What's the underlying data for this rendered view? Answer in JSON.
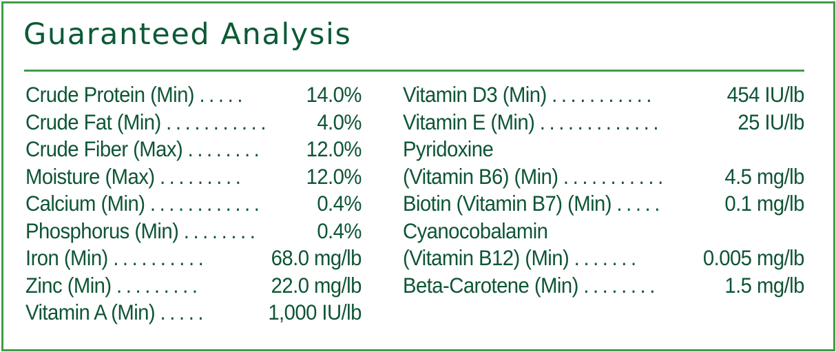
{
  "title": "Guaranteed Analysis",
  "colors": {
    "border": "#3f9c48",
    "text": "#0e5535",
    "title": "#0c5a36",
    "background": "#ffffff"
  },
  "left_column": [
    {
      "label": "Crude Protein (Min)",
      "dots": ".....",
      "value": "14.0%"
    },
    {
      "label": "Crude Fat (Min)",
      "dots": "...........",
      "value": "4.0%"
    },
    {
      "label": "Crude Fiber (Max)",
      "dots": "........",
      "value": "12.0%"
    },
    {
      "label": "Moisture (Max)",
      "dots": ".........",
      "value": "12.0%"
    },
    {
      "label": "Calcium (Min)",
      "dots": "............",
      "value": "0.4%"
    },
    {
      "label": "Phosphorus (Min)",
      "dots": "........",
      "value": "0.4%"
    },
    {
      "label": "Iron (Min)",
      "dots": "..........",
      "value": "68.0 mg/lb"
    },
    {
      "label": "Zinc (Min)",
      "dots": ".........",
      "value": "22.0 mg/lb"
    },
    {
      "label": "Vitamin A (Min)",
      "dots": ".....",
      "value": "1,000 IU/lb"
    }
  ],
  "right_column": [
    {
      "label": "Vitamin D3 (Min)",
      "dots": "...........",
      "value": "454 IU/lb"
    },
    {
      "label": "Vitamin E (Min)",
      "dots": ".............",
      "value": "25 IU/lb"
    },
    {
      "label": "Pyridoxine",
      "dots": "",
      "value": ""
    },
    {
      "label": "(Vitamin B6) (Min)",
      "dots": "...........",
      "value": "4.5 mg/lb"
    },
    {
      "label": "Biotin (Vitamin B7) (Min)",
      "dots": ".....",
      "value": "0.1 mg/lb"
    },
    {
      "label": "Cyanocobalamin",
      "dots": "",
      "value": ""
    },
    {
      "label": "(Vitamin B12) (Min)",
      "dots": ".......",
      "value": "0.005 mg/lb"
    },
    {
      "label": "Beta-Carotene (Min)",
      "dots": "........",
      "value": "1.5 mg/lb"
    }
  ]
}
